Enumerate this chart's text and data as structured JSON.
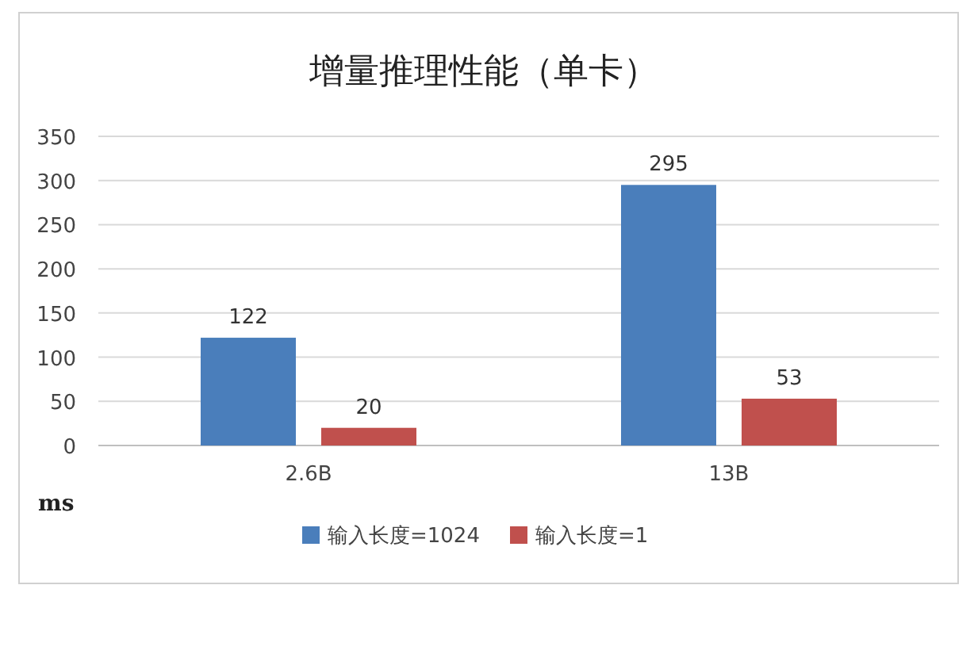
{
  "chart_data": {
    "type": "bar",
    "title": "增量推理性能（单卡）",
    "ylabel": "ms",
    "categories": [
      "2.6B",
      "13B"
    ],
    "series": [
      {
        "name": "输入长度=1024",
        "color": "#4a7ebb",
        "values": [
          122,
          295
        ]
      },
      {
        "name": "输入长度=1",
        "color": "#c0504d",
        "values": [
          20,
          53
        ]
      }
    ],
    "ylim": [
      0,
      350
    ],
    "yticks": [
      0,
      50,
      100,
      150,
      200,
      250,
      300,
      350
    ],
    "grid": "y",
    "legend": "bottom",
    "data_labels": true
  }
}
